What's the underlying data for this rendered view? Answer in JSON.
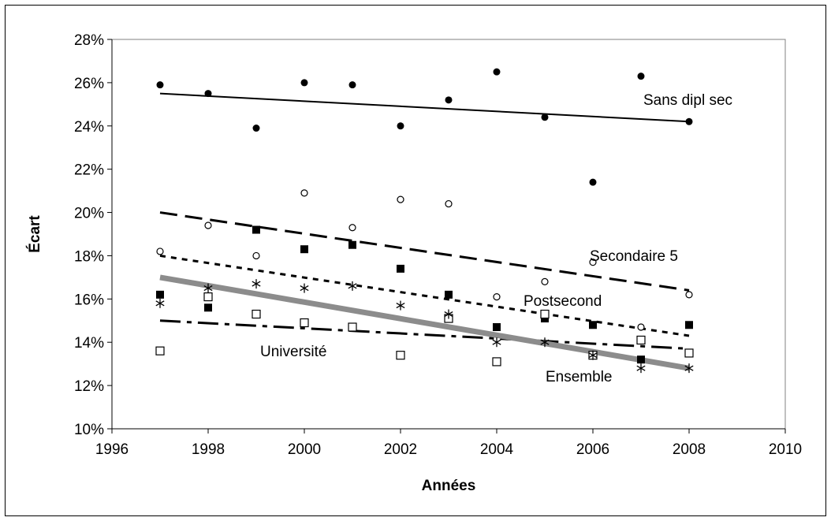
{
  "chart_data": {
    "type": "scatter",
    "xlabel": "Années",
    "ylabel": "Écart",
    "xlim": [
      1996,
      2010
    ],
    "ylim": [
      0.1,
      0.28
    ],
    "x_ticks": [
      "1996",
      "1998",
      "2000",
      "2002",
      "2004",
      "2006",
      "2008",
      "2010"
    ],
    "y_ticks": [
      "10%",
      "12%",
      "14%",
      "16%",
      "18%",
      "20%",
      "22%",
      "24%",
      "26%",
      "28%"
    ],
    "grid": false,
    "legend": "none",
    "series": [
      {
        "name": "Sans dipl sec",
        "marker": "filled-circle",
        "trend": "solid-thin",
        "x": [
          1997,
          1998,
          1999,
          2000,
          2001,
          2002,
          2003,
          2004,
          2005,
          2006,
          2007,
          2008
        ],
        "y": [
          0.259,
          0.255,
          0.239,
          0.26,
          0.259,
          0.24,
          0.252,
          0.265,
          0.244,
          0.214,
          0.263,
          0.242
        ],
        "trend_y": [
          0.255,
          0.242
        ]
      },
      {
        "name": "Secondaire 5",
        "marker": "open-circle",
        "trend": "long-dash",
        "x": [
          1997,
          1998,
          1999,
          2000,
          2001,
          2002,
          2003,
          2004,
          2005,
          2006,
          2007,
          2008
        ],
        "y": [
          0.182,
          0.194,
          0.18,
          0.209,
          0.193,
          0.206,
          0.204,
          0.161,
          0.168,
          0.177,
          0.147,
          0.162
        ],
        "trend_y": [
          0.2,
          0.164
        ]
      },
      {
        "name": "Postsecond",
        "marker": "filled-square",
        "trend": "short-dash",
        "x": [
          1997,
          1998,
          1999,
          2000,
          2001,
          2002,
          2003,
          2004,
          2005,
          2006,
          2007,
          2008
        ],
        "y": [
          0.162,
          0.156,
          0.192,
          0.183,
          0.185,
          0.174,
          0.162,
          0.147,
          0.151,
          0.148,
          0.132,
          0.148
        ],
        "trend_y": [
          0.18,
          0.143
        ]
      },
      {
        "name": "Université",
        "marker": "open-square",
        "trend": "dash-dot",
        "x": [
          1997,
          1998,
          1999,
          2000,
          2001,
          2002,
          2003,
          2004,
          2005,
          2006,
          2007,
          2008
        ],
        "y": [
          0.136,
          0.161,
          0.153,
          0.149,
          0.147,
          0.134,
          0.151,
          0.131,
          0.153,
          0.134,
          0.141,
          0.135
        ],
        "trend_y": [
          0.15,
          0.137
        ]
      },
      {
        "name": "Ensemble",
        "marker": "asterisk",
        "trend": "thick-grey",
        "x": [
          1997,
          1998,
          1999,
          2000,
          2001,
          2002,
          2003,
          2004,
          2005,
          2006,
          2007,
          2008
        ],
        "y": [
          0.158,
          0.165,
          0.167,
          0.165,
          0.166,
          0.157,
          0.153,
          0.14,
          0.14,
          0.134,
          0.128,
          0.128
        ],
        "trend_y": [
          0.17,
          0.128
        ]
      }
    ]
  }
}
